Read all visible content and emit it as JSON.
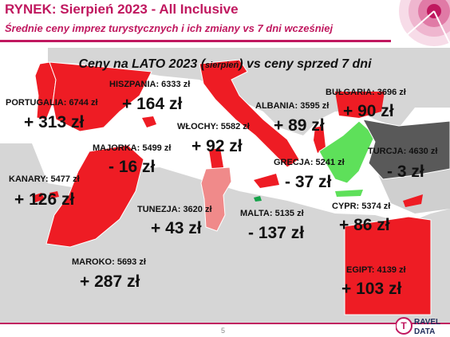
{
  "header": {
    "title": "RYNEK: Sierpień 2023 - All Inclusive",
    "subtitle": "Średnie ceny imprez turystycznych i ich zmiany vs 7 dni wcześniej"
  },
  "map": {
    "title_main": "Ceny na LATO 2023 (",
    "title_small": "sierpień",
    "title_end": ") vs ceny sprzed 7 dni",
    "colors": {
      "increase": "#ee1c24",
      "decrease": "#5ee05a",
      "neutral": "#595959",
      "tunisia": "#f08a8a",
      "land": "#d6d6d6",
      "sea": "#ffffff"
    },
    "destinations": [
      {
        "id": "portugalia",
        "label": "PORTUGALIA: 6744 zł",
        "change": "+ 313 zł"
      },
      {
        "id": "hiszpania",
        "label": "HISZPANIA: 6333 zł",
        "change": "+ 164 zł"
      },
      {
        "id": "majorka",
        "label": "MAJORKA: 5499 zł",
        "change": "- 16 zł"
      },
      {
        "id": "wlochy",
        "label": "WŁOCHY: 5582 zł",
        "change": "+ 92 zł"
      },
      {
        "id": "albania",
        "label": "ALBANIA: 3595 zł",
        "change": "+ 89 zł"
      },
      {
        "id": "bulgaria",
        "label": "BUŁGARIA: 3696 zł",
        "change": "+ 90 zł"
      },
      {
        "id": "turcja",
        "label": "TURCJA: 4630 zł",
        "change": "- 3 zł"
      },
      {
        "id": "grecja",
        "label": "GRECJA: 5241 zł",
        "change": "- 37 zł"
      },
      {
        "id": "kanary",
        "label": "KANARY: 5477 zł",
        "change": "+ 126 zł"
      },
      {
        "id": "tunezja",
        "label": "TUNEZJA: 3620 zł",
        "change": "+ 43 zł"
      },
      {
        "id": "malta",
        "label": "MALTA: 5135 zł",
        "change": "- 137 zł"
      },
      {
        "id": "cypr",
        "label": "CYPR: 5374 zł",
        "change": "+ 86 zł"
      },
      {
        "id": "maroko",
        "label": "MAROKO: 5693 zł",
        "change": "+ 287 zł"
      },
      {
        "id": "egipt",
        "label": "EGIPT: 4139 zł",
        "change": "+ 103 zł"
      }
    ]
  },
  "footer": {
    "page_number": "5",
    "logo_line1": "RAVEL",
    "logo_line2": "DATA",
    "logo_letter": "T",
    "logo_brand_color": "#c0185f"
  }
}
